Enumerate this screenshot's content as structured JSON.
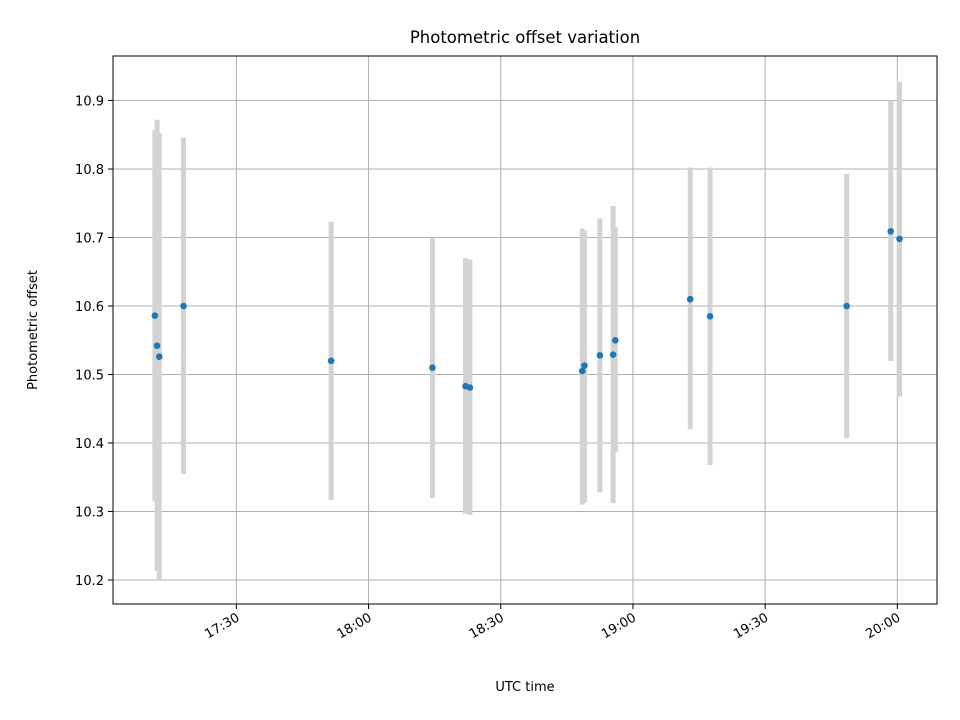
{
  "chart_data": {
    "type": "scatter",
    "title": "Photometric offset variation",
    "xlabel": "UTC time",
    "ylabel": "Photometric offset",
    "xlim": [
      "17:02",
      "20:09"
    ],
    "ylim": [
      10.165,
      10.965
    ],
    "x_ticks": [
      "17:30",
      "18:00",
      "18:30",
      "19:00",
      "19:30",
      "20:00"
    ],
    "y_ticks": [
      "10.2",
      "10.3",
      "10.4",
      "10.5",
      "10.6",
      "10.7",
      "10.8",
      "10.9"
    ],
    "grid": true,
    "error_bar_color": "#d3d3d3",
    "point_color": "#1f77b4",
    "points": [
      {
        "time": "17:11:30",
        "value": 10.586,
        "low": 10.315,
        "high": 10.857
      },
      {
        "time": "17:12:00",
        "value": 10.542,
        "low": 10.213,
        "high": 10.872
      },
      {
        "time": "17:12:30",
        "value": 10.526,
        "low": 10.2,
        "high": 10.853
      },
      {
        "time": "17:18:00",
        "value": 10.6,
        "low": 10.355,
        "high": 10.846
      },
      {
        "time": "17:51:30",
        "value": 10.52,
        "low": 10.317,
        "high": 10.723
      },
      {
        "time": "18:14:30",
        "value": 10.51,
        "low": 10.32,
        "high": 10.7
      },
      {
        "time": "18:22:00",
        "value": 10.483,
        "low": 10.297,
        "high": 10.67
      },
      {
        "time": "18:23:00",
        "value": 10.481,
        "low": 10.295,
        "high": 10.668
      },
      {
        "time": "18:48:30",
        "value": 10.505,
        "low": 10.31,
        "high": 10.713
      },
      {
        "time": "18:49:00",
        "value": 10.513,
        "low": 10.313,
        "high": 10.71
      },
      {
        "time": "18:52:30",
        "value": 10.528,
        "low": 10.328,
        "high": 10.728
      },
      {
        "time": "18:55:30",
        "value": 10.529,
        "low": 10.312,
        "high": 10.746
      },
      {
        "time": "18:56:00",
        "value": 10.55,
        "low": 10.387,
        "high": 10.715
      },
      {
        "time": "19:13:00",
        "value": 10.61,
        "low": 10.42,
        "high": 10.802
      },
      {
        "time": "19:17:30",
        "value": 10.585,
        "low": 10.368,
        "high": 10.802
      },
      {
        "time": "19:48:30",
        "value": 10.6,
        "low": 10.407,
        "high": 10.793
      },
      {
        "time": "19:58:30",
        "value": 10.709,
        "low": 10.52,
        "high": 10.9
      },
      {
        "time": "20:00:30",
        "value": 10.698,
        "low": 10.468,
        "high": 10.927
      }
    ]
  }
}
